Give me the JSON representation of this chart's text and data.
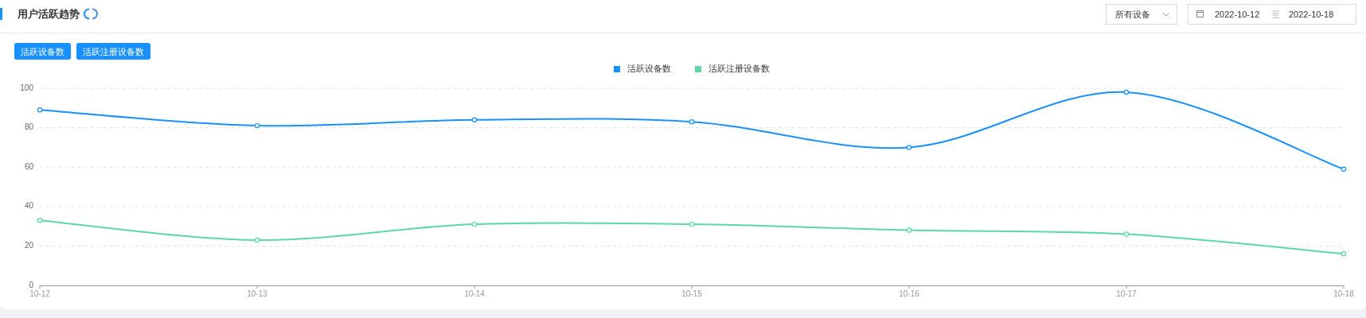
{
  "chart_data": {
    "type": "line",
    "title": "用户活跃趋势",
    "categories": [
      "10-12",
      "10-13",
      "10-14",
      "10-15",
      "10-16",
      "10-17",
      "10-18"
    ],
    "series": [
      {
        "name": "活跃设备数",
        "color": "#1890ff",
        "values": [
          89,
          81,
          84,
          83,
          70,
          98,
          59
        ]
      },
      {
        "name": "活跃注册设备数",
        "color": "#5ad8a6",
        "values": [
          33,
          23,
          31,
          31,
          28,
          26,
          16
        ]
      }
    ],
    "ylim": [
      0,
      100
    ],
    "yticks": [
      0,
      20,
      40,
      60,
      80,
      100
    ],
    "grid": "y",
    "legend": "top",
    "marker": "circle",
    "line_style": "solid",
    "annotations": [
      "活跃设备数",
      "活跃注册设备数",
      "所有设备",
      "2022-10-12",
      "至",
      "2022-10-18"
    ]
  }
}
